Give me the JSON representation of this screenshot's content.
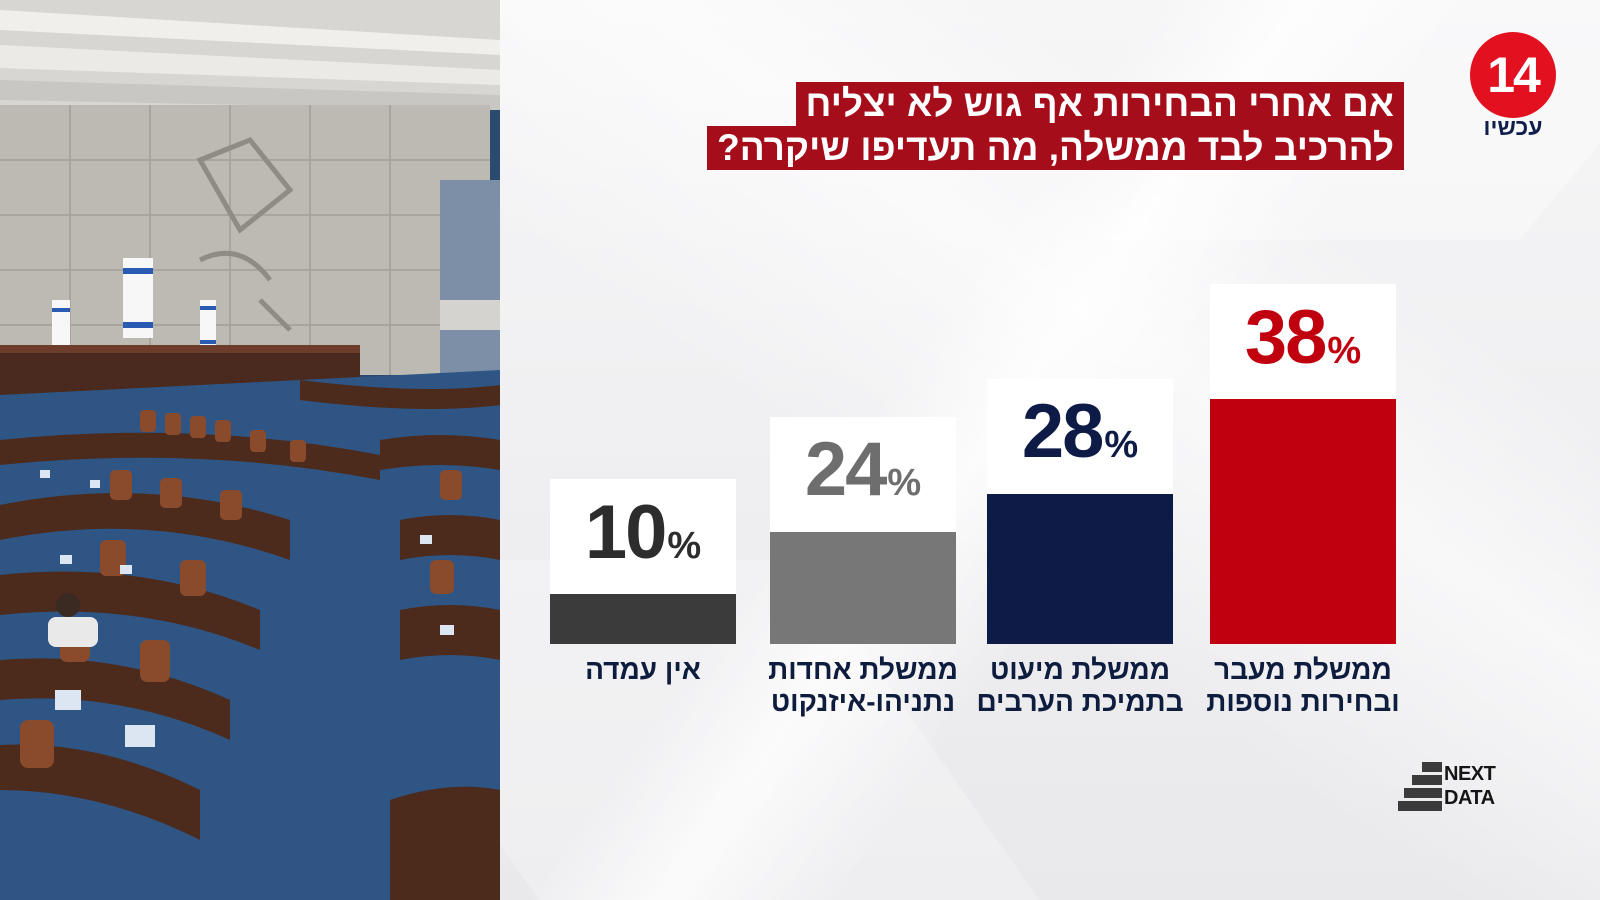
{
  "logo": {
    "number": "14",
    "subtitle": "עכשיו"
  },
  "title": {
    "line1": "אם אחרי הבחירות אף גוש לא יצליח",
    "line2": "להרכיב לבד ממשלה, מה תעדיפו שיקרה?"
  },
  "brand": {
    "line1": "NEXT",
    "line2": "DATA"
  },
  "colors": {
    "red": "#c1000f",
    "navy": "#0d1b46",
    "gray": "#777777",
    "dark": "#3b3b3b",
    "title_bg": "#a60d1b"
  },
  "chart_data": {
    "type": "bar",
    "categories": [
      [
        "אין עמדה"
      ],
      [
        "ממשלת אחדות",
        "נתניהו-איזנקוט"
      ],
      [
        "ממשלת מיעוט",
        "בתמיכת הערבים"
      ],
      [
        "ממשלת מעבר",
        "ובחירות נוספות"
      ]
    ],
    "values": [
      10,
      24,
      28,
      38
    ],
    "value_labels": [
      "10",
      "24",
      "28",
      "38"
    ],
    "unit": "%",
    "bar_colors": [
      "#3b3b3b",
      "#777777",
      "#0d1b46",
      "#c1000f"
    ],
    "label_colors": [
      "#2d2d2d",
      "#6e6e6e",
      "#0d1b46",
      "#c1000f"
    ],
    "ylim": [
      0,
      38
    ],
    "grid": false,
    "legend": "none"
  }
}
